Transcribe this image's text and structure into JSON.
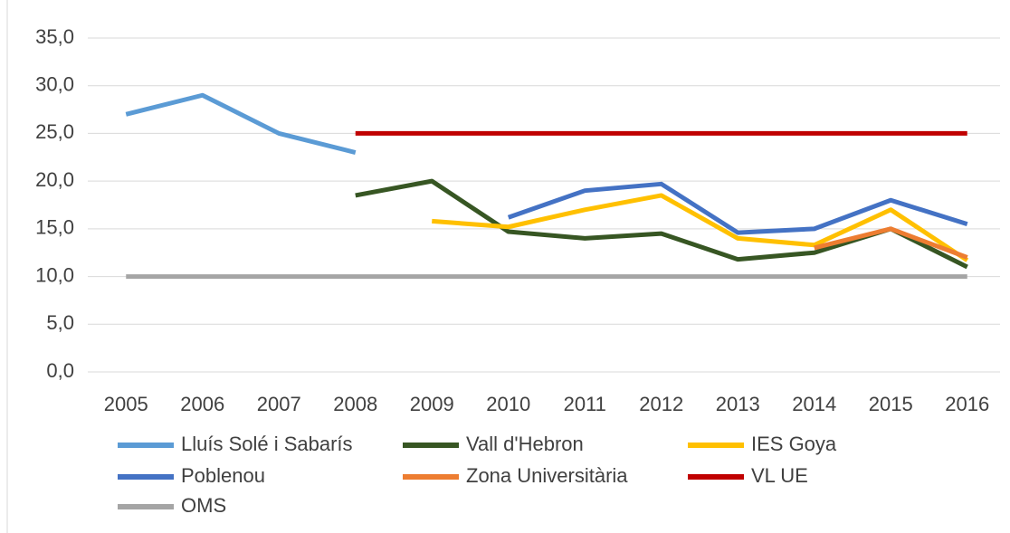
{
  "chart_data": {
    "type": "line",
    "categories": [
      "2005",
      "2006",
      "2007",
      "2008",
      "2009",
      "2010",
      "2011",
      "2012",
      "2013",
      "2014",
      "2015",
      "2016"
    ],
    "series": [
      {
        "name": "Lluís Solé i Sabarís",
        "color": "#5b9bd5",
        "values": [
          27,
          29,
          25,
          23,
          null,
          null,
          null,
          null,
          null,
          null,
          null,
          null
        ]
      },
      {
        "name": "Vall d'Hebron",
        "color": "#375623",
        "values": [
          null,
          null,
          null,
          18.5,
          20,
          14.7,
          14,
          14.5,
          11.8,
          12.5,
          15,
          11
        ]
      },
      {
        "name": "IES Goya",
        "color": "#ffc000",
        "values": [
          null,
          null,
          null,
          null,
          15.8,
          15.2,
          17,
          18.5,
          14,
          13.3,
          17,
          11.7
        ]
      },
      {
        "name": "Poblenou",
        "color": "#4472c4",
        "values": [
          null,
          null,
          null,
          null,
          null,
          16.2,
          19,
          19.7,
          14.6,
          15,
          18,
          15.5
        ]
      },
      {
        "name": "Zona Universitària",
        "color": "#ed7d31",
        "values": [
          null,
          null,
          null,
          null,
          null,
          null,
          null,
          null,
          null,
          13,
          15,
          12
        ]
      },
      {
        "name": "VL UE",
        "color": "#c00000",
        "values": [
          null,
          null,
          null,
          25,
          25,
          25,
          25,
          25,
          25,
          25,
          25,
          25
        ]
      },
      {
        "name": "OMS",
        "color": "#a5a5a5",
        "values": [
          10,
          10,
          10,
          10,
          10,
          10,
          10,
          10,
          10,
          10,
          10,
          10
        ]
      }
    ],
    "ylim": [
      0,
      35
    ],
    "yticks": [
      {
        "value": 0,
        "label": "0,0"
      },
      {
        "value": 5,
        "label": "5,0"
      },
      {
        "value": 10,
        "label": "10,0"
      },
      {
        "value": 15,
        "label": "15,0"
      },
      {
        "value": 20,
        "label": "20,0"
      },
      {
        "value": 25,
        "label": "25,0"
      },
      {
        "value": 30,
        "label": "30,0"
      },
      {
        "value": 35,
        "label": "35,0"
      }
    ],
    "grid": true,
    "legend": "bottom"
  }
}
